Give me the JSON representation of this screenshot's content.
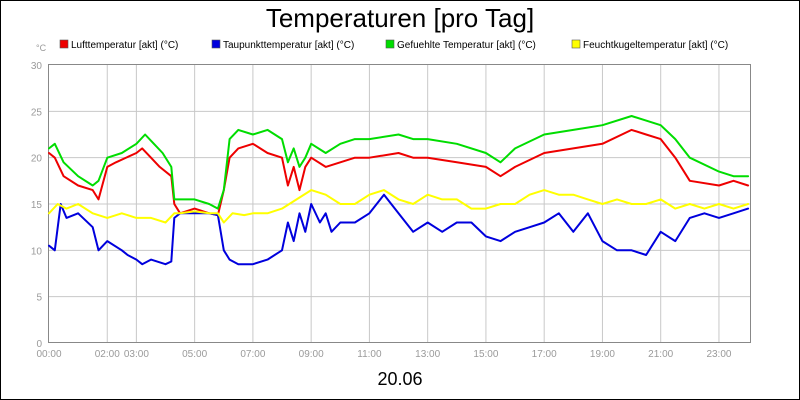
{
  "chart_data": {
    "type": "line",
    "title": "Temperaturen [pro Tag]",
    "ylabel_unit": "°C",
    "date_label": "20.06",
    "ylim": [
      0,
      30
    ],
    "xlim_hours": [
      0,
      24.1
    ],
    "y_ticks": [
      0,
      5,
      10,
      15,
      20,
      25,
      30
    ],
    "x_tick_hours": [
      0,
      2,
      3,
      5,
      7,
      9,
      11,
      13,
      15,
      17,
      19,
      21,
      23
    ],
    "x_tick_labels": [
      "00:00",
      "02:00",
      "03:00",
      "05:00",
      "07:00",
      "09:00",
      "11:00",
      "13:00",
      "15:00",
      "17:00",
      "19:00",
      "21:00",
      "23:00"
    ],
    "grid": true,
    "legend_position": "top",
    "series": [
      {
        "name": "Lufttemperatur [akt] (°C)",
        "color": "#ee0000",
        "x": [
          0,
          0.2,
          0.5,
          1,
          1.5,
          1.7,
          2,
          2.3,
          3,
          3.2,
          3.5,
          3.8,
          4.2,
          4.3,
          4.5,
          5,
          5.5,
          5.8,
          6,
          6.2,
          6.5,
          7,
          7.5,
          8,
          8.2,
          8.4,
          8.6,
          8.8,
          9,
          9.5,
          10,
          10.5,
          11,
          12,
          12.5,
          13,
          14,
          15,
          15.5,
          16,
          17,
          18,
          19,
          20,
          20.5,
          21,
          21.5,
          22,
          23,
          23.5,
          24
        ],
        "values": [
          20.5,
          20,
          18,
          17,
          16.5,
          15.5,
          19,
          19.5,
          20.5,
          21,
          20,
          19,
          18,
          15,
          14,
          14.5,
          14,
          13.8,
          16.5,
          20,
          21,
          21.5,
          20.5,
          20,
          17,
          19,
          16.5,
          19,
          20,
          19,
          19.5,
          20,
          20,
          20.5,
          20,
          20,
          19.5,
          19,
          18,
          19,
          20.5,
          21,
          21.5,
          23,
          22.5,
          22,
          20,
          17.5,
          17,
          17.5,
          17
        ]
      },
      {
        "name": "Taupunkttemperatur [akt] (°C)",
        "color": "#0000dd",
        "x": [
          0,
          0.2,
          0.4,
          0.6,
          1,
          1.5,
          1.7,
          2,
          2.5,
          2.7,
          3,
          3.2,
          3.5,
          4,
          4.2,
          4.3,
          4.5,
          5,
          5.5,
          5.8,
          6,
          6.2,
          6.5,
          7,
          7.5,
          8,
          8.2,
          8.4,
          8.6,
          8.8,
          9,
          9.3,
          9.5,
          9.7,
          10,
          10.5,
          11,
          11.5,
          12,
          12.5,
          13,
          13.5,
          14,
          14.5,
          15,
          15.5,
          16,
          16.5,
          17,
          17.5,
          18,
          18.5,
          19,
          19.5,
          20,
          20.5,
          21,
          21.5,
          22,
          22.5,
          23,
          23.5,
          24
        ],
        "values": [
          10.5,
          10,
          15,
          13.5,
          14,
          12.5,
          10,
          11,
          10,
          9.5,
          9,
          8.5,
          9,
          8.5,
          8.8,
          13.5,
          14,
          14,
          14,
          13.8,
          10,
          9,
          8.5,
          8.5,
          9,
          10,
          13,
          11,
          14,
          12,
          15,
          13,
          14,
          12,
          13,
          13,
          14,
          16,
          14,
          12,
          13,
          12,
          13,
          13,
          11.5,
          11,
          12,
          12.5,
          13,
          14,
          12,
          14,
          11,
          10,
          10,
          9.5,
          12,
          11,
          13.5,
          14,
          13.5,
          14,
          14.5
        ]
      },
      {
        "name": "Gefuehlte Temperatur [akt] (°C)",
        "color": "#00dd00",
        "x": [
          0,
          0.2,
          0.5,
          1,
          1.5,
          1.7,
          2,
          2.5,
          3,
          3.3,
          3.6,
          3.9,
          4.2,
          4.3,
          4.5,
          5,
          5.5,
          5.8,
          6,
          6.2,
          6.5,
          7,
          7.5,
          8,
          8.2,
          8.4,
          8.6,
          8.8,
          9,
          9.5,
          10,
          10.5,
          11,
          12,
          12.5,
          13,
          14,
          15,
          15.5,
          16,
          17,
          18,
          19,
          20,
          20.5,
          21,
          21.5,
          22,
          23,
          23.5,
          24
        ],
        "values": [
          21,
          21.5,
          19.5,
          18,
          17,
          17.5,
          20,
          20.5,
          21.5,
          22.5,
          21.5,
          20.5,
          19,
          15.5,
          15.5,
          15.5,
          15,
          14.5,
          16.5,
          22,
          23,
          22.5,
          23,
          22,
          19.5,
          21,
          19,
          20,
          21.5,
          20.5,
          21.5,
          22,
          22,
          22.5,
          22,
          22,
          21.5,
          20.5,
          19.5,
          21,
          22.5,
          23,
          23.5,
          24.5,
          24,
          23.5,
          22,
          20,
          18.5,
          18,
          18
        ]
      },
      {
        "name": "Feuchtkugeltemperatur [akt] (°C)",
        "color": "#ffff00",
        "x": [
          0,
          0.3,
          0.6,
          1,
          1.5,
          2,
          2.5,
          3,
          3.5,
          4,
          4.3,
          4.5,
          5,
          5.5,
          5.8,
          6,
          6.3,
          6.7,
          7,
          7.5,
          8,
          8.5,
          9,
          9.5,
          10,
          10.5,
          11,
          11.5,
          12,
          12.5,
          13,
          13.5,
          14,
          14.5,
          15,
          15.5,
          16,
          16.5,
          17,
          17.5,
          18,
          18.5,
          19,
          19.5,
          20,
          20.5,
          21,
          21.5,
          22,
          22.5,
          23,
          23.5,
          24
        ],
        "values": [
          14,
          15,
          14.5,
          15,
          14,
          13.5,
          14,
          13.5,
          13.5,
          13,
          14,
          14,
          14.2,
          14,
          14,
          13,
          14,
          13.8,
          14,
          14,
          14.5,
          15.5,
          16.5,
          16,
          15,
          15,
          16,
          16.5,
          15.5,
          15,
          16,
          15.5,
          15.5,
          14.5,
          14.5,
          15,
          15,
          16,
          16.5,
          16,
          16,
          15.5,
          15,
          15.5,
          15,
          15,
          15.5,
          14.5,
          15,
          14.5,
          15,
          14.5,
          15
        ]
      }
    ]
  }
}
